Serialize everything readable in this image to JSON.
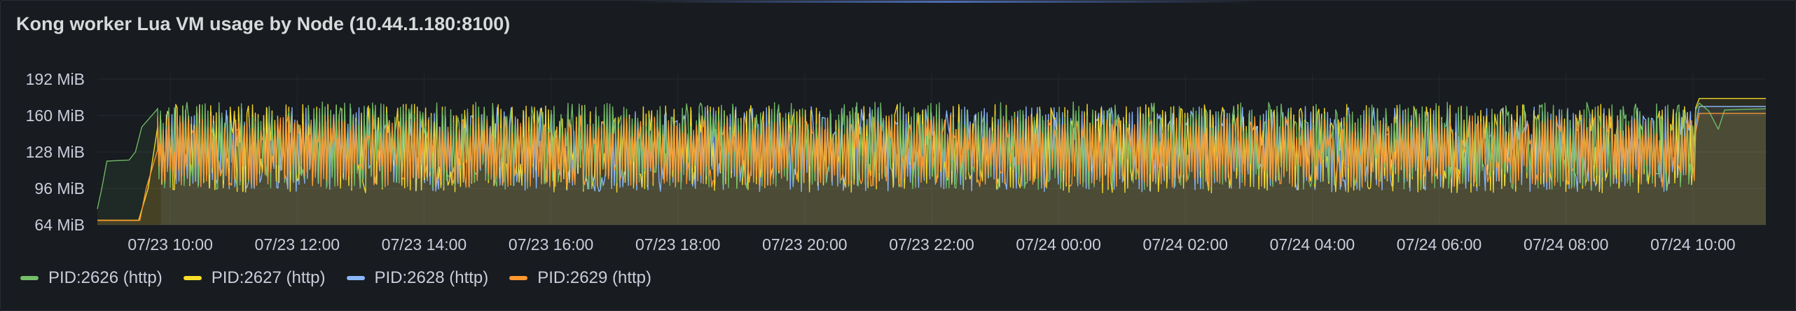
{
  "panel": {
    "title": "Kong worker Lua VM usage by Node (10.44.1.180:8100)"
  },
  "chart_data": {
    "type": "line",
    "title": "Kong worker Lua VM usage by Node (10.44.1.180:8100)",
    "yunit": "MiB",
    "ylim": [
      64,
      192
    ],
    "y_ticks": [
      "64 MiB",
      "96 MiB",
      "128 MiB",
      "160 MiB",
      "192 MiB"
    ],
    "y_tick_values": [
      64,
      96,
      128,
      160,
      192
    ],
    "x_ticks": [
      "07/23 10:00",
      "07/23 12:00",
      "07/23 14:00",
      "07/23 16:00",
      "07/23 18:00",
      "07/23 20:00",
      "07/23 22:00",
      "07/24 00:00",
      "07/24 02:00",
      "07/24 04:00",
      "07/24 06:00",
      "07/24 08:00",
      "07/24 10:00"
    ],
    "x_tick_hours": [
      10,
      12,
      14,
      16,
      18,
      20,
      22,
      24,
      26,
      28,
      30,
      32,
      34
    ],
    "xlim_hours": [
      8.85,
      35.15
    ],
    "grid": true,
    "legend_position": "bottom-left",
    "area_fill_floor": 92,
    "series": [
      {
        "name": "PID:2626 (http)",
        "color": "#73bf69",
        "start": [
          [
            8.85,
            78
          ],
          [
            8.92,
            96
          ],
          [
            9.0,
            120
          ],
          [
            9.35,
            121
          ],
          [
            9.45,
            128
          ],
          [
            9.55,
            150
          ],
          [
            9.8,
            166
          ]
        ],
        "steady": {
          "from": 9.8,
          "to": 34.05,
          "low": 95,
          "high": 172
        },
        "end": [
          [
            34.1,
            171
          ],
          [
            34.25,
            164
          ],
          [
            34.4,
            148
          ],
          [
            34.5,
            165
          ],
          [
            35.15,
            166
          ]
        ]
      },
      {
        "name": "PID:2627 (http)",
        "color": "#fade2a",
        "start": [
          [
            8.85,
            68
          ],
          [
            9.5,
            68
          ],
          [
            9.65,
            96
          ],
          [
            9.8,
            150
          ]
        ],
        "steady": {
          "from": 9.8,
          "to": 34.05,
          "low": 92,
          "high": 170
        },
        "end": [
          [
            34.1,
            175
          ],
          [
            35.15,
            175
          ]
        ]
      },
      {
        "name": "PID:2628 (http)",
        "color": "#8ab8ff",
        "start": [
          [
            9.85,
            140
          ]
        ],
        "steady": {
          "from": 9.85,
          "to": 34.05,
          "low": 93,
          "high": 168
        },
        "end": [
          [
            34.1,
            168
          ],
          [
            35.15,
            168
          ]
        ]
      },
      {
        "name": "PID:2629 (http)",
        "color": "#ff9830",
        "start": [
          [
            8.85,
            68
          ],
          [
            9.52,
            68
          ],
          [
            9.62,
            96
          ],
          [
            9.8,
            130
          ]
        ],
        "steady": {
          "from": 9.8,
          "to": 34.05,
          "low": 97,
          "high": 160
        },
        "end": [
          [
            34.1,
            162
          ],
          [
            35.15,
            162
          ]
        ]
      }
    ]
  },
  "legend": [
    {
      "label": "PID:2626 (http)",
      "color": "#73bf69"
    },
    {
      "label": "PID:2627 (http)",
      "color": "#fade2a"
    },
    {
      "label": "PID:2628 (http)",
      "color": "#8ab8ff"
    },
    {
      "label": "PID:2629 (http)",
      "color": "#ff9830"
    }
  ]
}
